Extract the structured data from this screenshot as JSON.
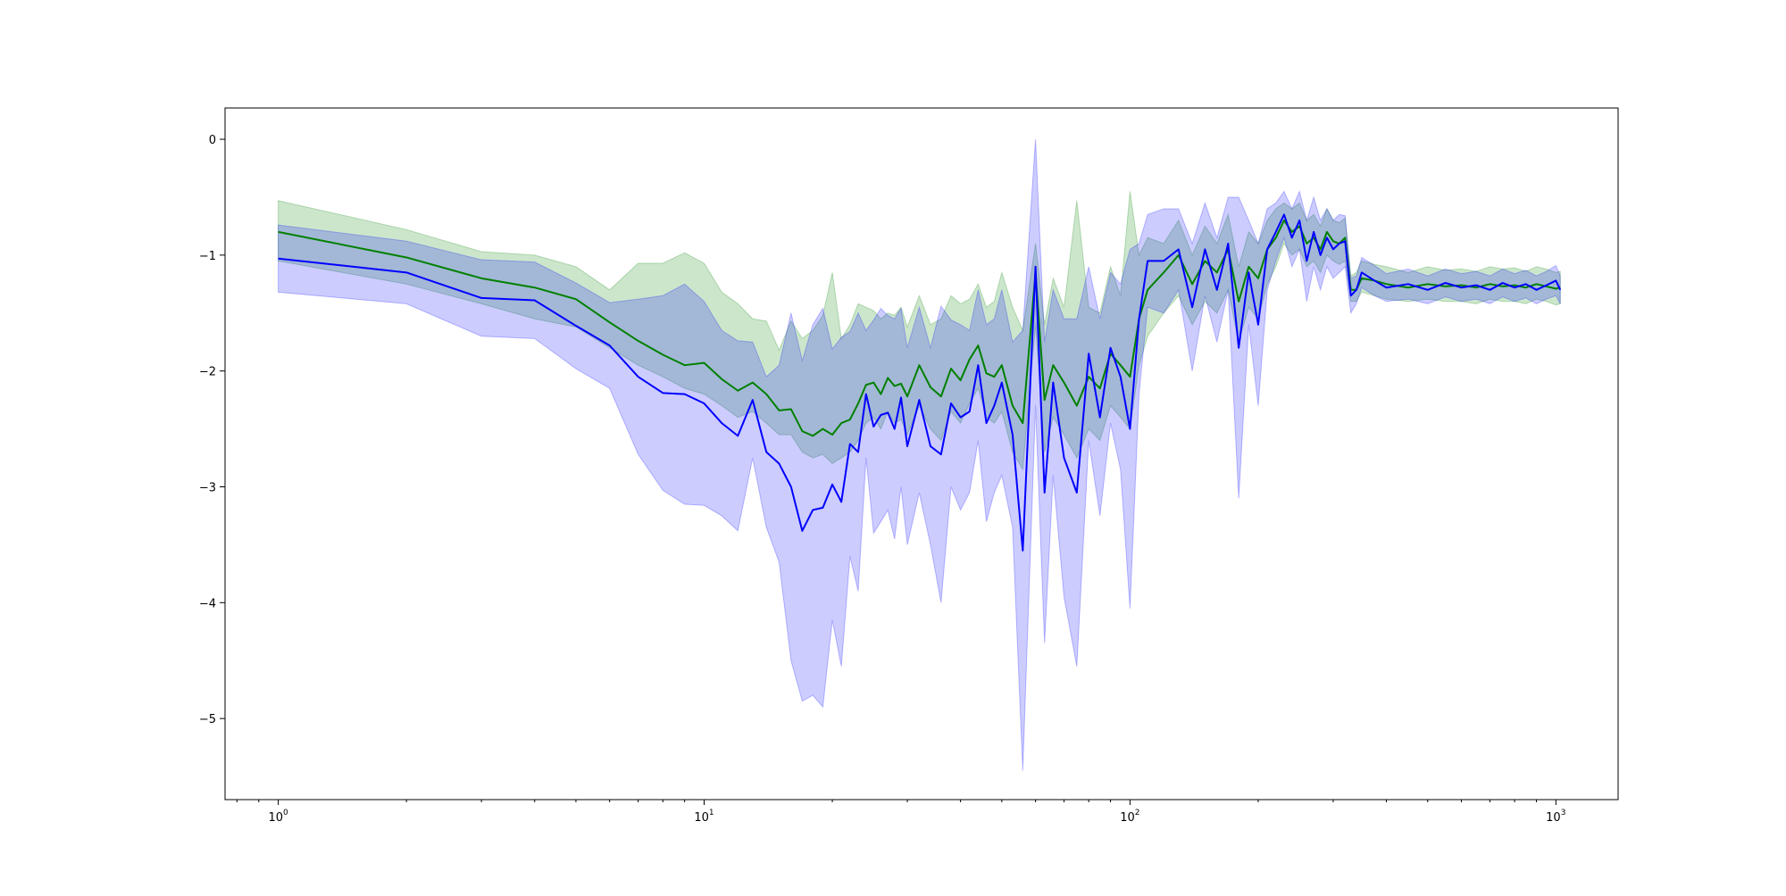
{
  "chart_data": {
    "type": "line",
    "title": "",
    "xlabel": "",
    "ylabel": "",
    "xscale": "log",
    "xlim": [
      0.75,
      1400
    ],
    "ylim": [
      -5.7,
      0.27
    ],
    "grid": false,
    "legend": "none",
    "x_ticks": [
      {
        "value": 1,
        "base": "10",
        "exp": "0"
      },
      {
        "value": 10,
        "base": "10",
        "exp": "1"
      },
      {
        "value": 100,
        "base": "10",
        "exp": "2"
      },
      {
        "value": 1000,
        "base": "10",
        "exp": "3"
      }
    ],
    "y_ticks": [
      {
        "value": 0,
        "label": "0"
      },
      {
        "value": -1,
        "label": "−1"
      },
      {
        "value": -2,
        "label": "−2"
      },
      {
        "value": -3,
        "label": "−3"
      },
      {
        "value": -4,
        "label": "−4"
      },
      {
        "value": -5,
        "label": "−5"
      }
    ],
    "series": [
      {
        "color": "#008000",
        "band_color": "#008000",
        "band_opacity": 0.2,
        "x": [
          1,
          2,
          3,
          4,
          5,
          6,
          7,
          8,
          9,
          10,
          11,
          12,
          13,
          14,
          15,
          16,
          17,
          18,
          19,
          20,
          21,
          22,
          23,
          24,
          25,
          26,
          27,
          28,
          29,
          30,
          32,
          34,
          36,
          38,
          40,
          42,
          44,
          46,
          48,
          50,
          53,
          56,
          60,
          63,
          66,
          70,
          75,
          80,
          85,
          90,
          95,
          100,
          105,
          110,
          120,
          130,
          140,
          150,
          160,
          170,
          180,
          190,
          200,
          210,
          220,
          230,
          240,
          250,
          260,
          270,
          280,
          290,
          300,
          310,
          320,
          330,
          340,
          350,
          375,
          400,
          450,
          500,
          550,
          600,
          650,
          700,
          750,
          800,
          850,
          900,
          950,
          1000,
          1024
        ],
        "y": [
          -0.8,
          -1.02,
          -1.2,
          -1.28,
          -1.38,
          -1.58,
          -1.74,
          -1.86,
          -1.95,
          -1.93,
          -2.07,
          -2.17,
          -2.1,
          -2.2,
          -2.34,
          -2.33,
          -2.52,
          -2.56,
          -2.5,
          -2.55,
          -2.45,
          -2.42,
          -2.28,
          -2.12,
          -2.1,
          -2.2,
          -2.06,
          -2.13,
          -2.11,
          -2.22,
          -1.95,
          -2.14,
          -2.22,
          -1.98,
          -2.08,
          -1.9,
          -1.78,
          -2.02,
          -2.05,
          -1.95,
          -2.3,
          -2.45,
          -1.15,
          -2.25,
          -1.95,
          -2.1,
          -2.3,
          -2.05,
          -2.15,
          -1.85,
          -1.95,
          -2.05,
          -1.55,
          -1.3,
          -1.15,
          -1.0,
          -1.25,
          -1.05,
          -1.15,
          -0.95,
          -1.4,
          -1.1,
          -1.2,
          -0.95,
          -0.85,
          -0.7,
          -0.8,
          -0.75,
          -0.9,
          -0.85,
          -0.95,
          -0.8,
          -0.88,
          -0.9,
          -0.85,
          -1.3,
          -1.3,
          -1.2,
          -1.22,
          -1.25,
          -1.28,
          -1.25,
          -1.27,
          -1.26,
          -1.28,
          -1.25,
          -1.27,
          -1.26,
          -1.28,
          -1.25,
          -1.27,
          -1.29,
          -1.28
        ],
        "lower": [
          -1.05,
          -1.25,
          -1.42,
          -1.55,
          -1.62,
          -1.8,
          -1.95,
          -2.05,
          -2.15,
          -2.2,
          -2.3,
          -2.4,
          -2.35,
          -2.45,
          -2.55,
          -2.55,
          -2.7,
          -2.75,
          -2.72,
          -2.8,
          -2.75,
          -2.7,
          -2.6,
          -2.45,
          -2.4,
          -2.5,
          -2.35,
          -2.45,
          -2.42,
          -2.55,
          -2.3,
          -2.5,
          -2.6,
          -2.35,
          -2.45,
          -2.28,
          -2.15,
          -2.4,
          -2.45,
          -2.35,
          -2.7,
          -2.85,
          -1.6,
          -2.7,
          -2.4,
          -2.55,
          -2.75,
          -2.5,
          -2.6,
          -2.3,
          -2.4,
          -2.5,
          -1.95,
          -1.7,
          -1.5,
          -1.35,
          -1.6,
          -1.4,
          -1.5,
          -1.3,
          -1.75,
          -1.45,
          -1.55,
          -1.25,
          -1.1,
          -0.9,
          -1.0,
          -0.95,
          -1.1,
          -1.05,
          -1.15,
          -1.0,
          -1.05,
          -1.08,
          -1.05,
          -1.4,
          -1.4,
          -1.32,
          -1.35,
          -1.38,
          -1.4,
          -1.38,
          -1.4,
          -1.4,
          -1.42,
          -1.38,
          -1.4,
          -1.4,
          -1.42,
          -1.38,
          -1.4,
          -1.43,
          -1.42
        ],
        "upper": [
          -0.53,
          -0.78,
          -0.97,
          -1.0,
          -1.1,
          -1.3,
          -1.07,
          -1.07,
          -0.98,
          -1.07,
          -1.32,
          -1.42,
          -1.55,
          -1.57,
          -1.82,
          -1.57,
          -1.72,
          -1.65,
          -1.52,
          -1.15,
          -1.72,
          -1.6,
          -1.42,
          -1.45,
          -1.48,
          -1.55,
          -1.5,
          -1.52,
          -1.45,
          -1.62,
          -1.35,
          -1.6,
          -1.55,
          -1.35,
          -1.42,
          -1.38,
          -1.25,
          -1.45,
          -1.4,
          -1.15,
          -1.45,
          -1.65,
          -0.9,
          -1.6,
          -1.2,
          -1.45,
          -0.53,
          -1.45,
          -1.5,
          -1.1,
          -1.35,
          -0.45,
          -1.0,
          -0.85,
          -0.9,
          -0.7,
          -1.0,
          -0.75,
          -0.9,
          -0.65,
          -1.1,
          -0.8,
          -0.9,
          -0.7,
          -0.6,
          -0.55,
          -0.6,
          -0.55,
          -0.7,
          -0.65,
          -0.75,
          -0.6,
          -0.7,
          -0.72,
          -0.68,
          -1.18,
          -1.15,
          -1.05,
          -1.08,
          -1.1,
          -1.15,
          -1.1,
          -1.13,
          -1.12,
          -1.14,
          -1.1,
          -1.12,
          -1.11,
          -1.14,
          -1.1,
          -1.12,
          -1.15,
          -1.14
        ]
      },
      {
        "color": "#0000ff",
        "band_color": "#0000ff",
        "band_opacity": 0.2,
        "x": [
          1,
          2,
          3,
          4,
          5,
          6,
          7,
          8,
          9,
          10,
          11,
          12,
          13,
          14,
          15,
          16,
          17,
          18,
          19,
          20,
          21,
          22,
          23,
          24,
          25,
          26,
          27,
          28,
          29,
          30,
          32,
          34,
          36,
          38,
          40,
          42,
          44,
          46,
          48,
          50,
          53,
          56,
          60,
          63,
          66,
          70,
          75,
          80,
          85,
          90,
          95,
          100,
          105,
          110,
          120,
          130,
          140,
          150,
          160,
          170,
          180,
          190,
          200,
          210,
          220,
          230,
          240,
          250,
          260,
          270,
          280,
          290,
          300,
          310,
          320,
          330,
          340,
          350,
          375,
          400,
          450,
          500,
          550,
          600,
          650,
          700,
          750,
          800,
          850,
          900,
          950,
          1000,
          1024
        ],
        "y": [
          -1.03,
          -1.15,
          -1.37,
          -1.39,
          -1.61,
          -1.78,
          -2.05,
          -2.19,
          -2.2,
          -2.28,
          -2.45,
          -2.56,
          -2.25,
          -2.7,
          -2.8,
          -3.0,
          -3.38,
          -3.2,
          -3.18,
          -2.98,
          -3.13,
          -2.63,
          -2.7,
          -2.2,
          -2.48,
          -2.38,
          -2.36,
          -2.5,
          -2.23,
          -2.65,
          -2.25,
          -2.65,
          -2.72,
          -2.28,
          -2.4,
          -2.35,
          -1.95,
          -2.45,
          -2.3,
          -2.1,
          -2.55,
          -3.55,
          -1.1,
          -3.05,
          -2.1,
          -2.75,
          -3.05,
          -1.85,
          -2.4,
          -1.8,
          -2.05,
          -2.5,
          -1.55,
          -1.05,
          -1.05,
          -0.95,
          -1.45,
          -0.95,
          -1.3,
          -0.9,
          -1.8,
          -1.15,
          -1.6,
          -0.95,
          -0.8,
          -0.65,
          -0.85,
          -0.7,
          -1.05,
          -0.8,
          -1.0,
          -0.85,
          -0.95,
          -0.9,
          -0.88,
          -1.35,
          -1.3,
          -1.15,
          -1.22,
          -1.28,
          -1.25,
          -1.3,
          -1.24,
          -1.28,
          -1.26,
          -1.3,
          -1.24,
          -1.28,
          -1.25,
          -1.3,
          -1.26,
          -1.22,
          -1.3
        ],
        "lower": [
          -1.32,
          -1.42,
          -1.7,
          -1.72,
          -1.98,
          -2.15,
          -2.72,
          -3.03,
          -3.15,
          -3.16,
          -3.25,
          -3.38,
          -2.75,
          -3.35,
          -3.65,
          -4.5,
          -4.85,
          -4.8,
          -4.9,
          -4.15,
          -4.55,
          -3.6,
          -3.9,
          -2.75,
          -3.4,
          -3.3,
          -3.2,
          -3.45,
          -3.0,
          -3.5,
          -3.05,
          -3.5,
          -4.0,
          -3.0,
          -3.2,
          -3.05,
          -2.6,
          -3.3,
          -3.05,
          -2.9,
          -3.35,
          -5.45,
          -2.3,
          -4.35,
          -2.9,
          -3.95,
          -4.55,
          -2.6,
          -3.25,
          -2.45,
          -2.85,
          -4.05,
          -2.2,
          -1.45,
          -1.5,
          -1.3,
          -2.0,
          -1.35,
          -1.75,
          -1.3,
          -3.1,
          -1.6,
          -2.3,
          -1.3,
          -1.05,
          -0.85,
          -1.1,
          -0.95,
          -1.4,
          -1.1,
          -1.3,
          -1.1,
          -1.2,
          -1.15,
          -1.1,
          -1.5,
          -1.42,
          -1.28,
          -1.35,
          -1.4,
          -1.38,
          -1.42,
          -1.36,
          -1.4,
          -1.38,
          -1.42,
          -1.36,
          -1.4,
          -1.37,
          -1.42,
          -1.38,
          -1.35,
          -1.42
        ],
        "upper": [
          -0.74,
          -0.88,
          -1.04,
          -1.06,
          -1.24,
          -1.41,
          -1.38,
          -1.35,
          -1.25,
          -1.4,
          -1.65,
          -1.74,
          -1.75,
          -2.05,
          -1.95,
          -1.5,
          -1.91,
          -1.6,
          -1.46,
          -1.81,
          -1.71,
          -1.66,
          -1.5,
          -1.65,
          -1.56,
          -1.46,
          -1.52,
          -1.55,
          -1.46,
          -1.8,
          -1.45,
          -1.8,
          -1.44,
          -1.56,
          -1.6,
          -1.65,
          -1.3,
          -1.6,
          -1.55,
          -1.3,
          -1.75,
          -1.65,
          0.0,
          -1.75,
          -1.3,
          -1.55,
          -1.55,
          -1.1,
          -1.55,
          -1.15,
          -1.25,
          -0.95,
          -0.9,
          -0.65,
          -0.6,
          -0.6,
          -0.9,
          -0.55,
          -0.85,
          -0.5,
          -0.5,
          -0.7,
          -0.9,
          -0.6,
          -0.55,
          -0.45,
          -0.6,
          -0.45,
          -0.7,
          -0.5,
          -0.7,
          -0.6,
          -0.7,
          -0.65,
          -0.66,
          -1.2,
          -1.18,
          -1.02,
          -1.09,
          -1.16,
          -1.12,
          -1.18,
          -1.12,
          -1.16,
          -1.14,
          -1.18,
          -1.12,
          -1.16,
          -1.13,
          -1.18,
          -1.14,
          -1.09,
          -1.18
        ]
      }
    ]
  }
}
